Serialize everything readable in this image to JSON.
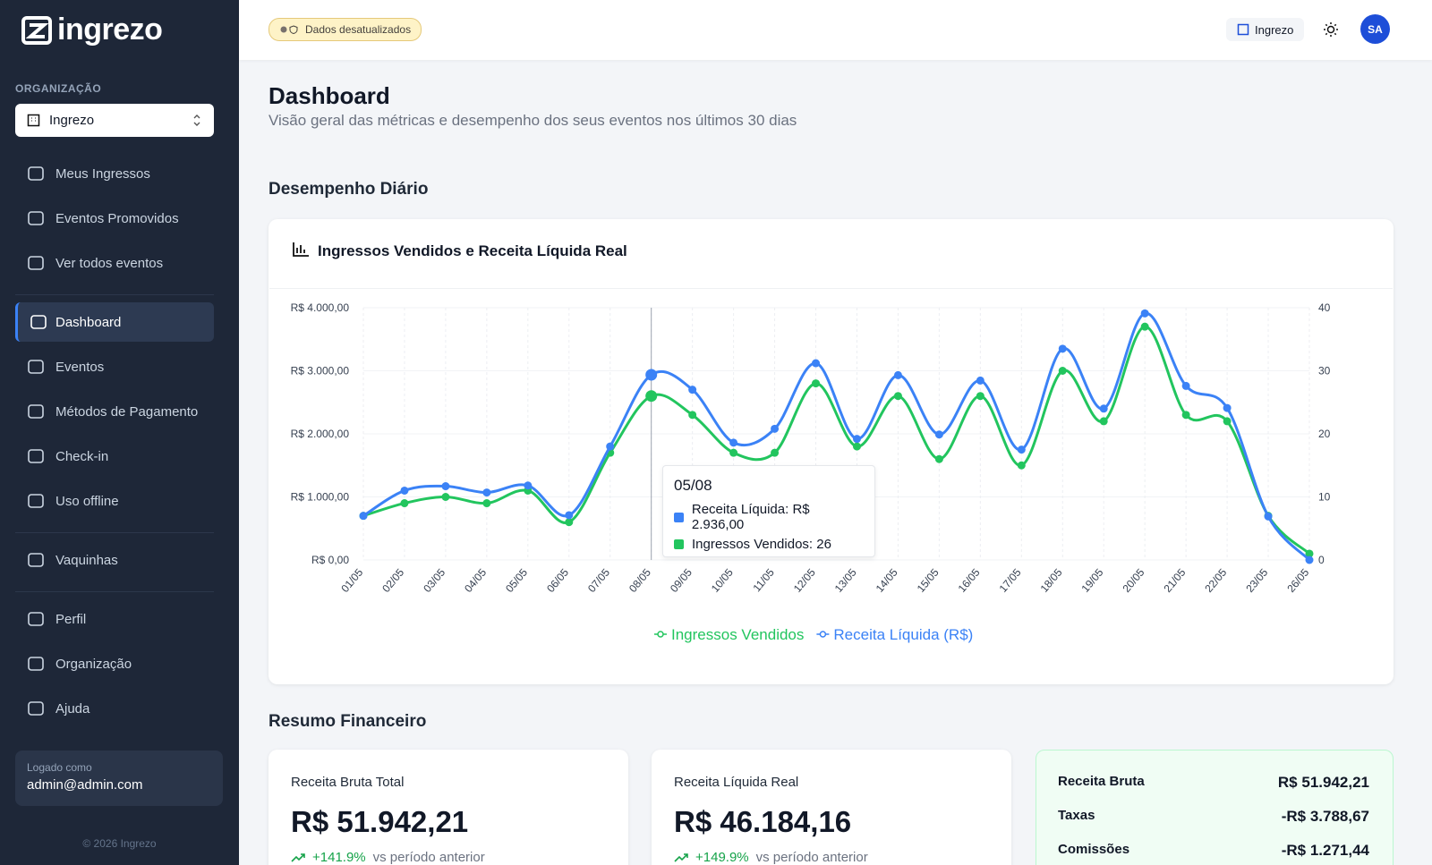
{
  "sidebar": {
    "logo": "ingrezo",
    "org_label": "ORGANIZAÇÃO",
    "org_select": "Ingrezo",
    "nav": [
      [
        {
          "label": "Meus Ingressos"
        },
        {
          "label": "Eventos Promovidos"
        },
        {
          "label": "Ver todos eventos"
        }
      ],
      [
        {
          "label": "Dashboard",
          "active": true
        },
        {
          "label": "Eventos"
        },
        {
          "label": "Métodos de Pagamento"
        },
        {
          "label": "Check-in"
        },
        {
          "label": "Uso offline"
        }
      ],
      [
        {
          "label": "Vaquinhas"
        }
      ],
      [
        {
          "label": "Perfil"
        },
        {
          "label": "Organização"
        },
        {
          "label": "Ajuda"
        }
      ]
    ],
    "logged_label": "Logado como",
    "logged_user": "admin@admin.com",
    "footer": "© 2026 Ingrezo"
  },
  "topbar": {
    "badge": "Dados desatualizados",
    "org_button": "Ingrezo",
    "avatar": "SA"
  },
  "header": {
    "title": "Dashboard",
    "subtitle": "Visão geral das métricas e desempenho dos seus eventos nos últimos 30 dias"
  },
  "section_title": "Desempenho Diário",
  "card_title": "Ingressos Vendidos e Receita Líquida Real",
  "chart_data": {
    "type": "line",
    "categories": [
      "01/05",
      "02/05",
      "03/05",
      "04/05",
      "05/05",
      "06/05",
      "07/05",
      "08/05",
      "09/05",
      "10/05",
      "11/05",
      "12/05",
      "13/05",
      "14/05",
      "15/05",
      "16/05",
      "17/05",
      "18/05",
      "19/05",
      "20/05",
      "21/05",
      "22/05",
      "23/05",
      "26/05"
    ],
    "series": [
      {
        "name": "Ingressos Vendidos",
        "color": "#22c55e",
        "axis": "y2",
        "values": [
          7,
          9,
          10,
          9,
          11,
          6,
          17,
          26,
          23,
          17,
          17,
          28,
          18,
          26,
          16,
          26,
          15,
          30,
          22,
          37,
          23,
          22,
          7,
          1
        ]
      },
      {
        "name": "Receita Líquida (R$)",
        "color": "#3b82f6",
        "values": [
          700,
          1100,
          1170,
          1070,
          1180,
          710,
          1800,
          2936,
          2700,
          1860,
          2080,
          3120,
          1920,
          2930,
          1990,
          2845,
          1750,
          3350,
          2400,
          3910,
          2760,
          2410,
          690,
          0
        ]
      }
    ],
    "ylim": [
      0,
      4000
    ],
    "yticks": [
      {
        "value": 0,
        "label": "R$ 0,00"
      },
      {
        "value": 1000,
        "label": "R$ 1.000,00"
      },
      {
        "value": 2000,
        "label": "R$ 2.000,00"
      },
      {
        "value": 3000,
        "label": "R$ 3.000,00"
      },
      {
        "value": 4000,
        "label": "R$ 4.000,00"
      }
    ],
    "y2lim": [
      0,
      40
    ],
    "y2ticks": [
      0,
      10,
      20,
      30,
      40
    ],
    "grid": true,
    "legend": "bottom",
    "tooltip": {
      "title": "05/08",
      "line1": "Receita Líquida: R$ 2.936,00",
      "line2": "Ingressos Vendidos: 26"
    }
  },
  "summary": {
    "title": "Resumo Financeiro",
    "cards": [
      {
        "label": "Receita Bruta Total",
        "value": "R$ 51.942,21",
        "change": "+141.9%",
        "note": "vs período anterior"
      },
      {
        "label": "Receita Líquida Real",
        "value": "R$ 46.184,16",
        "change": "+149.9%",
        "note": "vs período anterior"
      }
    ],
    "breakdown": [
      [
        "Receita Bruta",
        "R$ 51.942,21"
      ],
      [
        "Taxas",
        "-R$ 3.788,67"
      ],
      [
        "Comissões",
        "-R$ 1.271,44"
      ]
    ]
  }
}
